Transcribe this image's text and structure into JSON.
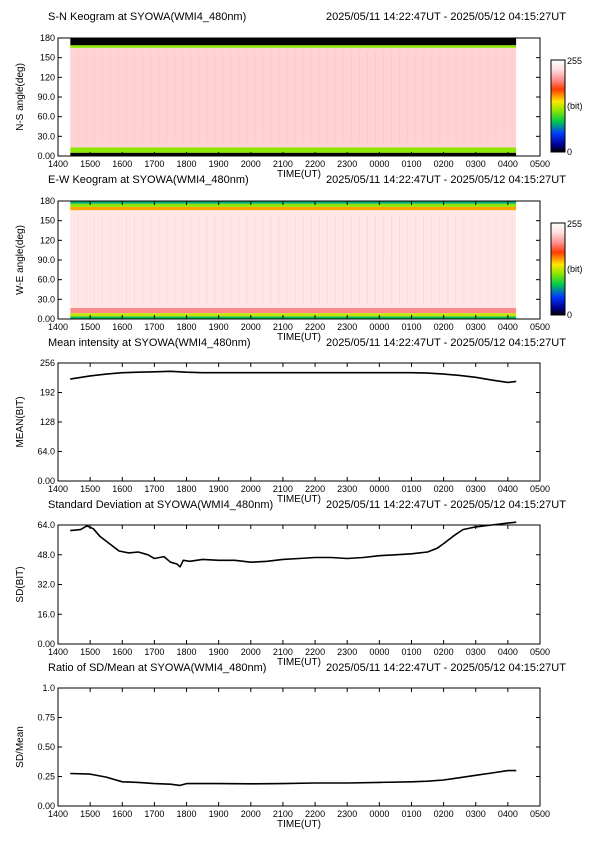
{
  "chart_data": [
    {
      "type": "heatmap",
      "title": "S-N Keogram at SYOWA(WMI4_480nm)",
      "time_range": "2025/05/11 14:22:47UT - 2025/05/12 04:15:27UT",
      "xlabel": "TIME(UT)",
      "ylabel": "N-S angle(deg)",
      "x_tick_labels": [
        "1400",
        "1500",
        "1600",
        "1700",
        "1800",
        "1900",
        "2000",
        "2100",
        "2200",
        "2300",
        "0000",
        "0100",
        "0200",
        "0300",
        "0400",
        "0500"
      ],
      "y_tick_labels": [
        "0.00",
        "30.0",
        "60.0",
        "90.0",
        "120",
        "150",
        "180"
      ],
      "y_ticks": [
        0,
        30,
        60,
        90,
        120,
        150,
        180
      ],
      "ylim": [
        0,
        180
      ],
      "xlim": [
        14.0,
        29.0
      ],
      "data_start": 14.38,
      "data_end": 28.26,
      "colorbar": {
        "max_label": "255",
        "unit_label": "(bit)",
        "min_label": "0"
      },
      "bands": [
        {
          "from": 0,
          "to": 5,
          "level": 0
        },
        {
          "from": 5,
          "to": 13,
          "level": 0.45
        },
        {
          "from": 13,
          "to": 165,
          "level": 0.88
        },
        {
          "from": 165,
          "to": 169,
          "level": 0.45
        },
        {
          "from": 169,
          "to": 180,
          "level": 0
        }
      ]
    },
    {
      "type": "heatmap",
      "title": "E-W Keogram at SYOWA(WMI4_480nm)",
      "time_range": "2025/05/11 14:22:47UT - 2025/05/12 04:15:27UT",
      "xlabel": "TIME(UT)",
      "ylabel": "W-E angle(deg)",
      "x_tick_labels": [
        "1400",
        "1500",
        "1600",
        "1700",
        "1800",
        "1900",
        "2000",
        "2100",
        "2200",
        "2300",
        "0000",
        "0100",
        "0200",
        "0300",
        "0400",
        "0500"
      ],
      "y_tick_labels": [
        "0.00",
        "30.0",
        "60.0",
        "90.0",
        "120",
        "150",
        "180"
      ],
      "y_ticks": [
        0,
        30,
        60,
        90,
        120,
        150,
        180
      ],
      "ylim": [
        0,
        180
      ],
      "xlim": [
        14.0,
        29.0
      ],
      "data_start": 14.38,
      "data_end": 28.26,
      "colorbar": {
        "max_label": "255",
        "unit_label": "(bit)",
        "min_label": "0"
      },
      "bands": [
        {
          "from": 0,
          "to": 4,
          "level": 0.32
        },
        {
          "from": 4,
          "to": 9,
          "level": 0.5
        },
        {
          "from": 9,
          "to": 17,
          "level": 0.78
        },
        {
          "from": 17,
          "to": 166,
          "level": 0.92
        },
        {
          "from": 166,
          "to": 171,
          "level": 0.6
        },
        {
          "from": 171,
          "to": 176,
          "level": 0.45
        },
        {
          "from": 176,
          "to": 180,
          "level": 0.3
        }
      ]
    },
    {
      "type": "line",
      "title": "Mean intensity at SYOWA(WMI4_480nm)",
      "time_range": "2025/05/11 14:22:47UT - 2025/05/12 04:15:27UT",
      "xlabel": "TIME(UT)",
      "ylabel": "MEAN(BIT)",
      "x_tick_labels": [
        "1400",
        "1500",
        "1600",
        "1700",
        "1800",
        "1900",
        "2000",
        "2100",
        "2200",
        "2300",
        "0000",
        "0100",
        "0200",
        "0300",
        "0400",
        "0500"
      ],
      "y_tick_labels": [
        "0.00",
        "64.0",
        "128",
        "192",
        "256"
      ],
      "y_ticks": [
        0,
        64,
        128,
        192,
        256
      ],
      "ylim": [
        0,
        256
      ],
      "xlim": [
        14.0,
        29.0
      ],
      "x": [
        14.38,
        15.0,
        15.5,
        16.0,
        16.5,
        17.0,
        17.5,
        18.0,
        18.5,
        19.0,
        20.0,
        21.0,
        22.0,
        23.0,
        24.0,
        25.0,
        25.5,
        26.0,
        26.5,
        27.0,
        27.5,
        28.0,
        28.26
      ],
      "y": [
        221,
        228,
        232,
        235,
        236,
        237,
        238,
        236,
        235,
        235,
        235,
        235,
        235,
        235,
        235,
        235,
        234,
        232,
        229,
        225,
        219,
        214,
        216
      ]
    },
    {
      "type": "line",
      "title": "Standard Deviation at SYOWA(WMI4_480nm)",
      "time_range": "2025/05/11 14:22:47UT - 2025/05/12 04:15:27UT",
      "xlabel": "TIME(UT)",
      "ylabel": "SD(BIT)",
      "x_tick_labels": [
        "1400",
        "1500",
        "1600",
        "1700",
        "1800",
        "1900",
        "2000",
        "2100",
        "2200",
        "2300",
        "0000",
        "0100",
        "0200",
        "0300",
        "0400",
        "0500"
      ],
      "y_tick_labels": [
        "0.00",
        "16.0",
        "32.0",
        "48.0",
        "64.0"
      ],
      "y_ticks": [
        0,
        16,
        32,
        48,
        64
      ],
      "ylim": [
        0,
        64
      ],
      "xlim": [
        14.0,
        29.0
      ],
      "x": [
        14.38,
        14.7,
        14.9,
        15.1,
        15.3,
        15.6,
        15.9,
        16.2,
        16.5,
        16.8,
        17.0,
        17.3,
        17.5,
        17.7,
        17.8,
        17.9,
        18.1,
        18.5,
        19.0,
        19.5,
        20.0,
        20.5,
        21.0,
        21.5,
        22.0,
        22.5,
        23.0,
        23.5,
        24.0,
        24.5,
        25.0,
        25.5,
        25.8,
        26.0,
        26.3,
        26.6,
        27.0,
        27.5,
        28.0,
        28.26
      ],
      "y": [
        61.0,
        61.5,
        63.5,
        62.0,
        58.0,
        54.0,
        50.0,
        49.0,
        49.5,
        48.0,
        46.0,
        47.0,
        44.0,
        43.0,
        41.5,
        45.0,
        44.5,
        45.5,
        45.0,
        45.0,
        44.0,
        44.5,
        45.5,
        46.0,
        46.5,
        46.5,
        46.0,
        46.5,
        47.5,
        48.0,
        48.5,
        49.5,
        51.5,
        54.0,
        58.0,
        61.5,
        63.0,
        64.0,
        65.0,
        65.5
      ]
    },
    {
      "type": "line",
      "title": "Ratio of SD/Mean at SYOWA(WMI4_480nm)",
      "time_range": "2025/05/11 14:22:47UT - 2025/05/12 04:15:27UT",
      "xlabel": "TIME(UT)",
      "ylabel": "SD/Mean",
      "x_tick_labels": [
        "1400",
        "1500",
        "1600",
        "1700",
        "1800",
        "1900",
        "2000",
        "2100",
        "2200",
        "2300",
        "0000",
        "0100",
        "0200",
        "0300",
        "0400",
        "0500"
      ],
      "y_tick_labels": [
        "0.00",
        "0.25",
        "0.50",
        "0.75",
        "1.0"
      ],
      "y_ticks": [
        0,
        0.25,
        0.5,
        0.75,
        1.0
      ],
      "ylim": [
        0,
        1.0
      ],
      "xlim": [
        14.0,
        29.0
      ],
      "x": [
        14.38,
        15.0,
        15.5,
        16.0,
        16.5,
        17.0,
        17.5,
        17.8,
        18.0,
        18.5,
        19.0,
        20.0,
        21.0,
        22.0,
        23.0,
        24.0,
        25.0,
        25.5,
        26.0,
        26.5,
        27.0,
        27.5,
        28.0,
        28.26
      ],
      "y": [
        0.275,
        0.27,
        0.245,
        0.205,
        0.2,
        0.19,
        0.185,
        0.175,
        0.19,
        0.19,
        0.19,
        0.188,
        0.19,
        0.195,
        0.195,
        0.2,
        0.205,
        0.21,
        0.22,
        0.24,
        0.26,
        0.28,
        0.3,
        0.3
      ]
    }
  ]
}
